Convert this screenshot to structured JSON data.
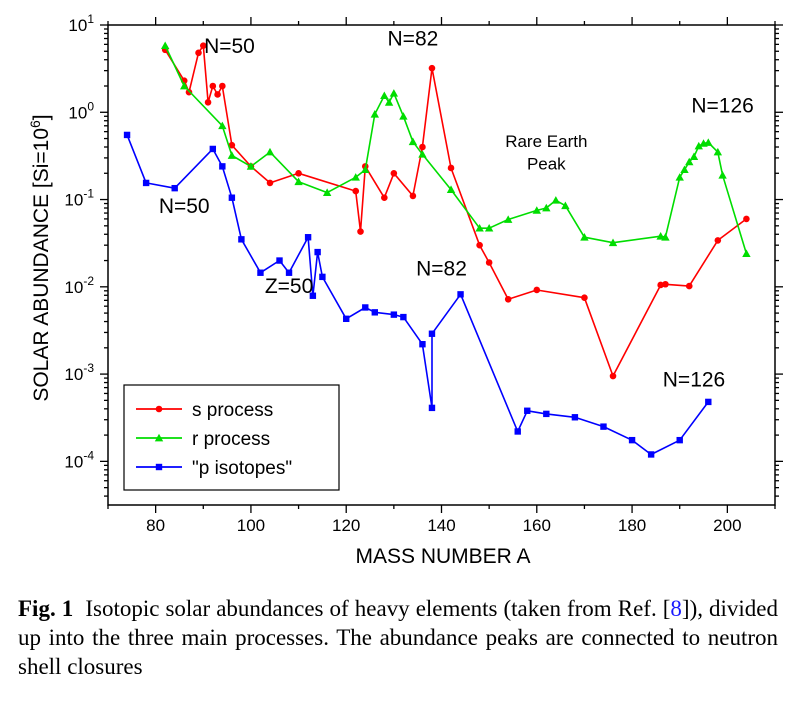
{
  "chart_data": {
    "type": "line",
    "xlabel": "MASS NUMBER A",
    "ylabel": "SOLAR ABUNDANCE [Si=10",
    "ylabel_sup": "6",
    "ylabel_end": "]",
    "xlim": [
      70,
      210
    ],
    "ylim_log10": [
      -4.5,
      1
    ],
    "yscale": "log",
    "x_ticks": [
      "80",
      "100",
      "120",
      "140",
      "160",
      "180",
      "200"
    ],
    "y_tick_base": "10",
    "y_tick_exps": [
      "1",
      "0",
      "-1",
      "-2",
      "-3",
      "-4"
    ],
    "legend_position": "bottom-left",
    "series": [
      {
        "name": "s process",
        "color": "#ff0000",
        "marker": "circle",
        "x": [
          82,
          86,
          87,
          89,
          90,
          91,
          92,
          93,
          94,
          96,
          100,
          104,
          110,
          122,
          123,
          124,
          128,
          130,
          134,
          136,
          138,
          142,
          148,
          150,
          154,
          160,
          170,
          176,
          186,
          187,
          192,
          198,
          204
        ],
        "y": [
          5.2,
          2.3,
          1.7,
          4.8,
          5.8,
          1.3,
          2.0,
          1.6,
          2.0,
          0.42,
          0.24,
          0.155,
          0.2,
          0.125,
          0.043,
          0.24,
          0.105,
          0.2,
          0.11,
          0.4,
          3.2,
          0.23,
          0.03,
          0.019,
          0.0072,
          0.0092,
          0.0075,
          0.00095,
          0.0105,
          0.0107,
          0.0102,
          0.034,
          0.06
        ]
      },
      {
        "name": "r process",
        "color": "#00dd00",
        "marker": "triangle",
        "x": [
          82,
          86,
          94,
          96,
          100,
          104,
          110,
          116,
          122,
          124,
          126,
          128,
          129,
          130,
          132,
          134,
          136,
          142,
          148,
          150,
          154,
          160,
          162,
          164,
          166,
          170,
          176,
          186,
          187,
          190,
          191,
          192,
          193,
          194,
          195,
          196,
          198,
          199,
          204
        ],
        "y": [
          5.8,
          2.0,
          0.7,
          0.32,
          0.24,
          0.35,
          0.16,
          0.12,
          0.18,
          0.22,
          0.95,
          1.55,
          1.3,
          1.65,
          0.9,
          0.46,
          0.33,
          0.13,
          0.047,
          0.047,
          0.059,
          0.075,
          0.08,
          0.098,
          0.085,
          0.037,
          0.032,
          0.038,
          0.037,
          0.18,
          0.22,
          0.27,
          0.31,
          0.41,
          0.44,
          0.45,
          0.35,
          0.19,
          0.024
        ]
      },
      {
        "name": "\"p isotopes\"",
        "color": "#0000ff",
        "marker": "square",
        "x": [
          74,
          78,
          84,
          92,
          94,
          96,
          98,
          102,
          106,
          108,
          112,
          113,
          114,
          115,
          120,
          124,
          126,
          130,
          132,
          136,
          138,
          138,
          144,
          156,
          158,
          162,
          168,
          174,
          180,
          184,
          190,
          196
        ],
        "y": [
          0.55,
          0.155,
          0.135,
          0.38,
          0.24,
          0.105,
          0.035,
          0.0145,
          0.02,
          0.0145,
          0.037,
          0.0079,
          0.025,
          0.013,
          0.0043,
          0.0058,
          0.0051,
          0.0048,
          0.0045,
          0.0022,
          0.00041,
          0.0029,
          0.0082,
          0.00022,
          0.00038,
          0.00035,
          0.00032,
          0.00025,
          0.000175,
          0.00012,
          0.000175,
          0.00048
        ]
      }
    ],
    "annotations": [
      {
        "text": "N=50",
        "x": 95.5,
        "y": 4.8
      },
      {
        "text": "N=82",
        "x": 134,
        "y": 5.8
      },
      {
        "text": "N=126",
        "x": 199,
        "y": 1.0
      },
      {
        "text": "Rare Earth",
        "x": 162,
        "y": 0.4
      },
      {
        "text": "Peak",
        "x": 162,
        "y": 0.22
      },
      {
        "text": "N=50",
        "x": 86,
        "y": 0.07
      },
      {
        "text": "Z=50",
        "x": 108,
        "y": 0.0085
      },
      {
        "text": "N=82",
        "x": 140,
        "y": 0.0135
      },
      {
        "text": "N=126",
        "x": 193,
        "y": 0.00072
      }
    ]
  },
  "caption": {
    "label": "Fig. 1",
    "text_before_ref": "Isotopic solar abundances of heavy elements (taken from Ref. [",
    "ref": "8",
    "text_after_ref": "]), divided up into the three main processes. The abundance peaks are connected to neutron shell closures"
  }
}
